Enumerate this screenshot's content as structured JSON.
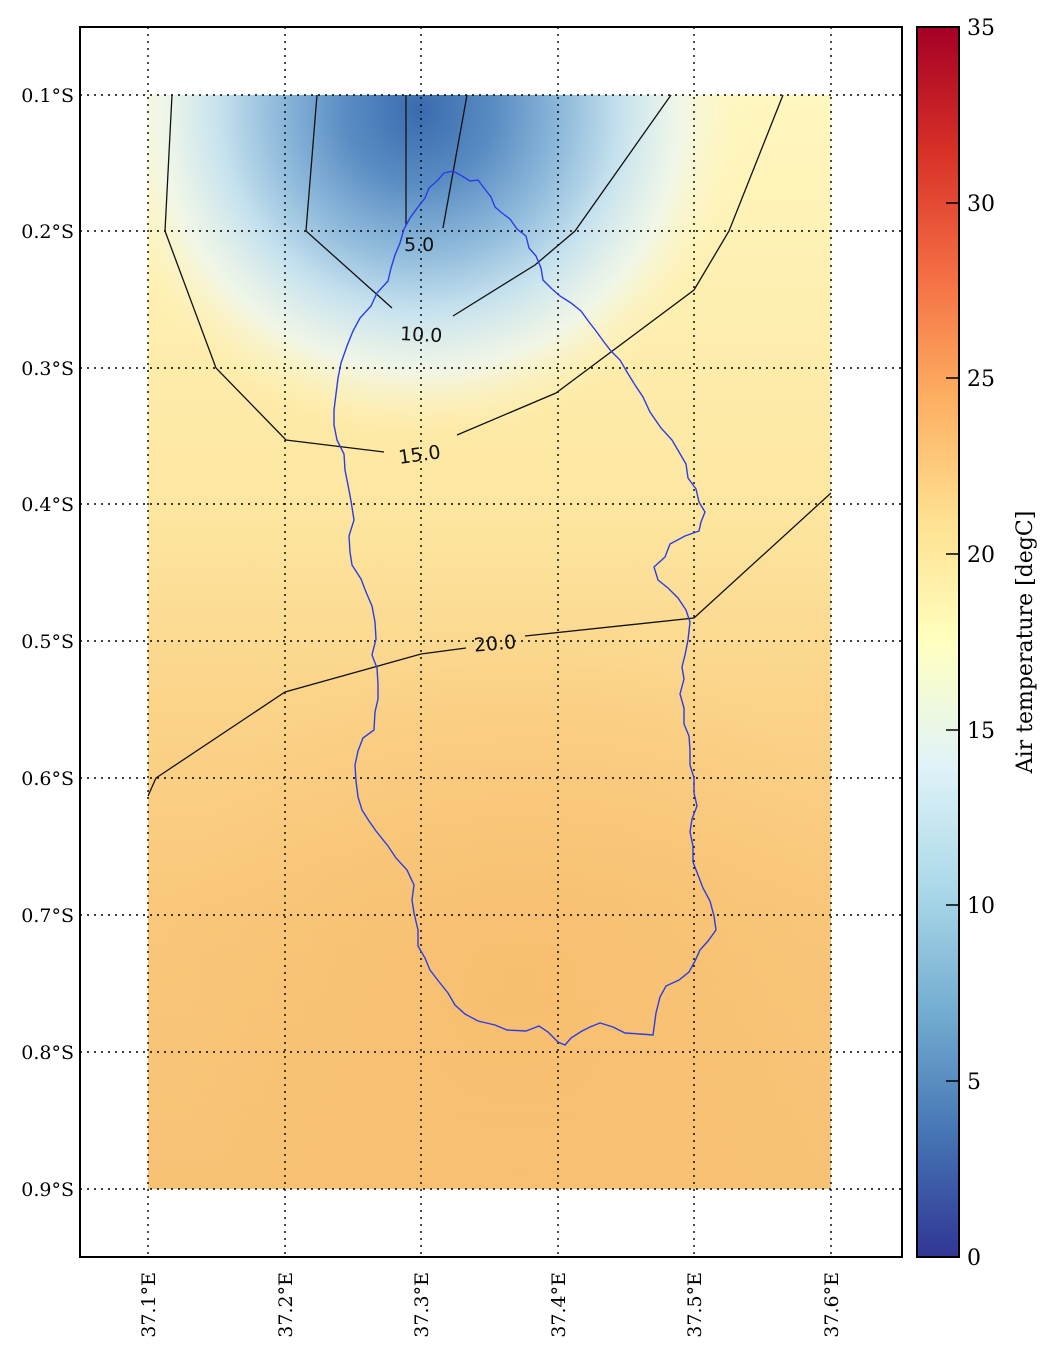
{
  "figure": {
    "colorbar": {
      "label": "Air temperature [degC]",
      "ticks": [
        0,
        5,
        10,
        15,
        20,
        25,
        30,
        35
      ],
      "range": [
        0,
        35
      ],
      "colormap": [
        "#313695",
        "#4575b4",
        "#74add1",
        "#abd9e9",
        "#e0f3f8",
        "#ffffbf",
        "#fee090",
        "#fdae61",
        "#f46d43",
        "#d73027",
        "#a50026"
      ]
    },
    "lat_ticks": [
      "0.1°S",
      "0.2°S",
      "0.3°S",
      "0.4°S",
      "0.5°S",
      "0.6°S",
      "0.7°S",
      "0.8°S",
      "0.9°S"
    ],
    "lon_ticks": [
      "37.1°E",
      "37.2°E",
      "37.3°E",
      "37.4°E",
      "37.5°E",
      "37.6°E"
    ],
    "contour_labels": [
      "5.0",
      "10.0",
      "15.0",
      "20.0"
    ],
    "basin_color": "#2a3ce8"
  },
  "chart_data": {
    "type": "heatmap",
    "subtype": "filled contour map with basin outline",
    "x_extent": [
      37.1,
      37.6
    ],
    "y_extent": [
      -0.9,
      -0.1
    ],
    "grid": true,
    "contour_levels": [
      5,
      10,
      15,
      20
    ],
    "value_label": "Air temperature [degC]",
    "value_range": [
      0,
      35
    ],
    "cold_core": {
      "lon": 37.31,
      "lat": -0.13,
      "approx_value": 3
    },
    "southern_values_approx": 22
  }
}
